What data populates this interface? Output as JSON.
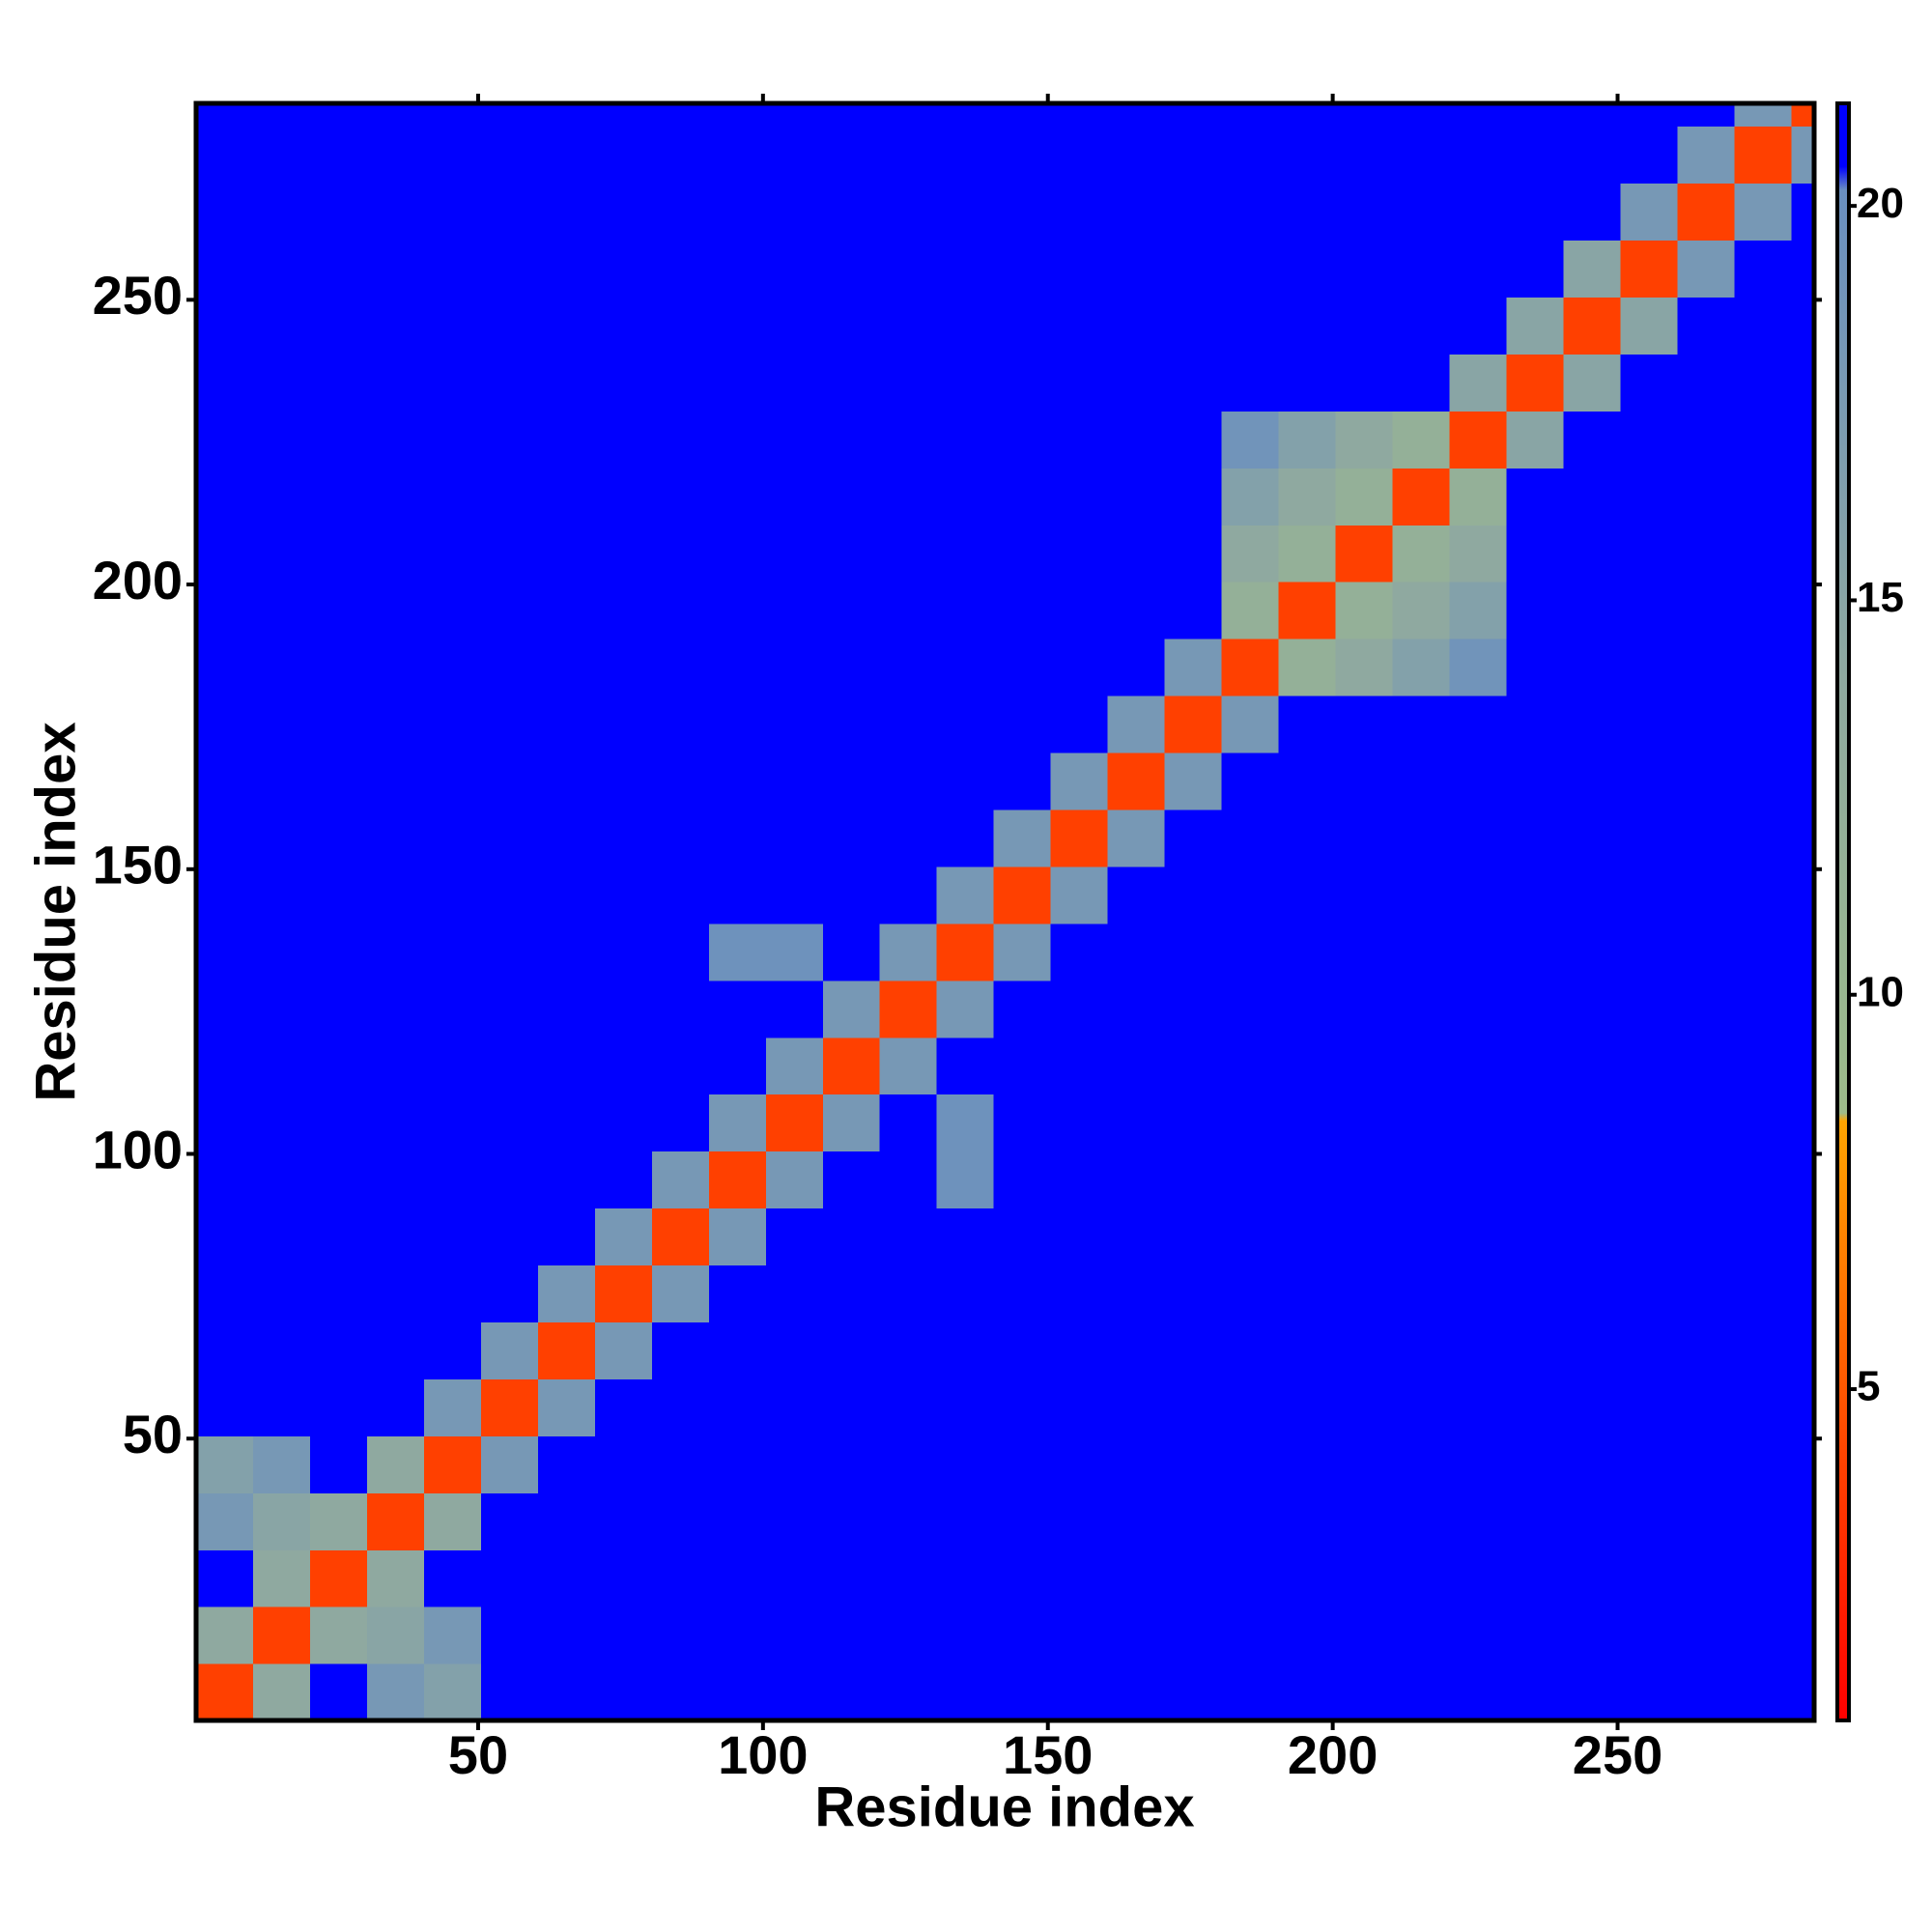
{
  "chart_data": {
    "type": "heatmap",
    "x_label": "Residue index",
    "y_label": "Residue index",
    "xlim": [
      0.5,
      284.5
    ],
    "ylim": [
      0.5,
      284.5
    ],
    "xticks": [
      50,
      100,
      150,
      200,
      250
    ],
    "yticks": [
      50,
      100,
      150,
      200,
      250
    ],
    "xbins": [
      0.5,
      10.5,
      20.5,
      30.5,
      40.5,
      50.5,
      60.5,
      70.5,
      80.5,
      90.5,
      100.5,
      110.5,
      120.5,
      130.5,
      140.5,
      150.5,
      160.5,
      170.5,
      180.5,
      190.5,
      200.5,
      210.5,
      220.5,
      230.5,
      240.5,
      250.5,
      260.5,
      270.5,
      280.5,
      284.5
    ],
    "ybins": [
      0.5,
      10.5,
      20.5,
      30.5,
      40.5,
      50.5,
      60.5,
      70.5,
      80.5,
      90.5,
      100.5,
      110.5,
      120.5,
      130.5,
      140.5,
      150.5,
      160.5,
      170.5,
      180.5,
      190.5,
      200.5,
      210.5,
      220.5,
      230.5,
      240.5,
      250.5,
      260.5,
      270.5,
      280.5,
      284.5
    ],
    "zlim": [
      0.8,
      21.3
    ],
    "zticks": [
      5,
      10,
      15,
      20
    ],
    "colorscale": [
      [
        0.8,
        "#ff0000"
      ],
      [
        4,
        "#ff4000"
      ],
      [
        8.4,
        "#ffa500"
      ],
      [
        8.5,
        "#9dbb8a"
      ],
      [
        14,
        "#8fa9a0"
      ],
      [
        20.2,
        "#6a8fc0"
      ],
      [
        20.5,
        "#0000ff"
      ],
      [
        21.3,
        "#0000ff"
      ]
    ],
    "z": [
      [
        4,
        14,
        21,
        18,
        16,
        21,
        21,
        21,
        21,
        21,
        21,
        21,
        21,
        21,
        21,
        21,
        21,
        21,
        21,
        21,
        21,
        21,
        21,
        21,
        21,
        21,
        21,
        21,
        21
      ],
      [
        14,
        4,
        14,
        15,
        18,
        21,
        21,
        21,
        21,
        21,
        21,
        21,
        21,
        21,
        21,
        21,
        21,
        21,
        21,
        21,
        21,
        21,
        21,
        21,
        21,
        21,
        21,
        21,
        21
      ],
      [
        21,
        14,
        4,
        14,
        21,
        21,
        21,
        21,
        21,
        21,
        21,
        21,
        21,
        21,
        21,
        21,
        21,
        21,
        21,
        21,
        21,
        21,
        21,
        21,
        21,
        21,
        21,
        21,
        21
      ],
      [
        18,
        15,
        14,
        4,
        14,
        21,
        21,
        21,
        21,
        21,
        21,
        21,
        21,
        21,
        21,
        21,
        21,
        21,
        21,
        21,
        21,
        21,
        21,
        21,
        21,
        21,
        21,
        21,
        21
      ],
      [
        16,
        18,
        21,
        14,
        4,
        18,
        21,
        21,
        21,
        21,
        21,
        21,
        21,
        21,
        21,
        21,
        21,
        21,
        21,
        21,
        21,
        21,
        21,
        21,
        21,
        21,
        21,
        21,
        21
      ],
      [
        21,
        21,
        21,
        21,
        18,
        4,
        18,
        21,
        21,
        21,
        21,
        21,
        21,
        21,
        21,
        21,
        21,
        21,
        21,
        21,
        21,
        21,
        21,
        21,
        21,
        21,
        21,
        21,
        21
      ],
      [
        21,
        21,
        21,
        21,
        21,
        18,
        4,
        18,
        21,
        21,
        21,
        21,
        21,
        21,
        21,
        21,
        21,
        21,
        21,
        21,
        21,
        21,
        21,
        21,
        21,
        21,
        21,
        21,
        21
      ],
      [
        21,
        21,
        21,
        21,
        21,
        21,
        18,
        4,
        18,
        21,
        21,
        21,
        21,
        21,
        21,
        21,
        21,
        21,
        21,
        21,
        21,
        21,
        21,
        21,
        21,
        21,
        21,
        21,
        21
      ],
      [
        21,
        21,
        21,
        21,
        21,
        21,
        21,
        18,
        4,
        18,
        21,
        21,
        21,
        21,
        21,
        21,
        21,
        21,
        21,
        21,
        21,
        21,
        21,
        21,
        21,
        21,
        21,
        21,
        21
      ],
      [
        21,
        21,
        21,
        21,
        21,
        21,
        21,
        21,
        18,
        4,
        18,
        21,
        21,
        19.5,
        21,
        21,
        21,
        21,
        21,
        21,
        21,
        21,
        21,
        21,
        21,
        21,
        21,
        21,
        21
      ],
      [
        21,
        21,
        21,
        21,
        21,
        21,
        21,
        21,
        21,
        18,
        4,
        18,
        21,
        19.5,
        21,
        21,
        21,
        21,
        21,
        21,
        21,
        21,
        21,
        21,
        21,
        21,
        21,
        21,
        21
      ],
      [
        21,
        21,
        21,
        21,
        21,
        21,
        21,
        21,
        21,
        21,
        18,
        4,
        18,
        21,
        21,
        21,
        21,
        21,
        21,
        21,
        21,
        21,
        21,
        21,
        21,
        21,
        21,
        21,
        21
      ],
      [
        21,
        21,
        21,
        21,
        21,
        21,
        21,
        21,
        21,
        21,
        21,
        18,
        4,
        18,
        21,
        21,
        21,
        21,
        21,
        21,
        21,
        21,
        21,
        21,
        21,
        21,
        21,
        21,
        21
      ],
      [
        21,
        21,
        21,
        21,
        21,
        21,
        21,
        21,
        21,
        19.5,
        19.5,
        21,
        18,
        4,
        18,
        21,
        21,
        21,
        21,
        21,
        21,
        21,
        21,
        21,
        21,
        21,
        21,
        21,
        21
      ],
      [
        21,
        21,
        21,
        21,
        21,
        21,
        21,
        21,
        21,
        21,
        21,
        21,
        21,
        18,
        4,
        18,
        21,
        21,
        21,
        21,
        21,
        21,
        21,
        21,
        21,
        21,
        21,
        21,
        21
      ],
      [
        21,
        21,
        21,
        21,
        21,
        21,
        21,
        21,
        21,
        21,
        21,
        21,
        21,
        21,
        18,
        4,
        18,
        21,
        21,
        21,
        21,
        21,
        21,
        21,
        21,
        21,
        21,
        21,
        21
      ],
      [
        21,
        21,
        21,
        21,
        21,
        21,
        21,
        21,
        21,
        21,
        21,
        21,
        21,
        21,
        21,
        18,
        4,
        18,
        21,
        21,
        21,
        21,
        21,
        21,
        21,
        21,
        21,
        21,
        21
      ],
      [
        21,
        21,
        21,
        21,
        21,
        21,
        21,
        21,
        21,
        21,
        21,
        21,
        21,
        21,
        21,
        21,
        18,
        4,
        18,
        21,
        21,
        21,
        21,
        21,
        21,
        21,
        21,
        21,
        21
      ],
      [
        21,
        21,
        21,
        21,
        21,
        21,
        21,
        21,
        21,
        21,
        21,
        21,
        21,
        21,
        21,
        21,
        21,
        18,
        4,
        12,
        14,
        16,
        19,
        21,
        21,
        21,
        21,
        21,
        21
      ],
      [
        21,
        21,
        21,
        21,
        21,
        21,
        21,
        21,
        21,
        21,
        21,
        21,
        21,
        21,
        21,
        21,
        21,
        21,
        12,
        4,
        12,
        14,
        16,
        21,
        21,
        21,
        21,
        21,
        21
      ],
      [
        21,
        21,
        21,
        21,
        21,
        21,
        21,
        21,
        21,
        21,
        21,
        21,
        21,
        21,
        21,
        21,
        21,
        21,
        14,
        12,
        4,
        12,
        14,
        21,
        21,
        21,
        21,
        21,
        21
      ],
      [
        21,
        21,
        21,
        21,
        21,
        21,
        21,
        21,
        21,
        21,
        21,
        21,
        21,
        21,
        21,
        21,
        21,
        21,
        16,
        14,
        12,
        4,
        12,
        21,
        21,
        21,
        21,
        21,
        21
      ],
      [
        21,
        21,
        21,
        21,
        21,
        21,
        21,
        21,
        21,
        21,
        21,
        21,
        21,
        21,
        21,
        21,
        21,
        21,
        19,
        16,
        14,
        12,
        4,
        15,
        21,
        21,
        21,
        21,
        21
      ],
      [
        21,
        21,
        21,
        21,
        21,
        21,
        21,
        21,
        21,
        21,
        21,
        21,
        21,
        21,
        21,
        21,
        21,
        21,
        21,
        21,
        21,
        21,
        15,
        4,
        15,
        21,
        21,
        21,
        21
      ],
      [
        21,
        21,
        21,
        21,
        21,
        21,
        21,
        21,
        21,
        21,
        21,
        21,
        21,
        21,
        21,
        21,
        21,
        21,
        21,
        21,
        21,
        21,
        21,
        15,
        4,
        15,
        21,
        21,
        21
      ],
      [
        21,
        21,
        21,
        21,
        21,
        21,
        21,
        21,
        21,
        21,
        21,
        21,
        21,
        21,
        21,
        21,
        21,
        21,
        21,
        21,
        21,
        21,
        21,
        21,
        15,
        4,
        18,
        21,
        21
      ],
      [
        21,
        21,
        21,
        21,
        21,
        21,
        21,
        21,
        21,
        21,
        21,
        21,
        21,
        21,
        21,
        21,
        21,
        21,
        21,
        21,
        21,
        21,
        21,
        21,
        21,
        18,
        4,
        18,
        21
      ],
      [
        21,
        21,
        21,
        21,
        21,
        21,
        21,
        21,
        21,
        21,
        21,
        21,
        21,
        21,
        21,
        21,
        21,
        21,
        21,
        21,
        21,
        21,
        21,
        21,
        21,
        21,
        18,
        4,
        18
      ],
      [
        21,
        21,
        21,
        21,
        21,
        21,
        21,
        21,
        21,
        21,
        21,
        21,
        21,
        21,
        21,
        21,
        21,
        21,
        21,
        21,
        21,
        21,
        21,
        21,
        21,
        21,
        21,
        18,
        4
      ]
    ]
  }
}
